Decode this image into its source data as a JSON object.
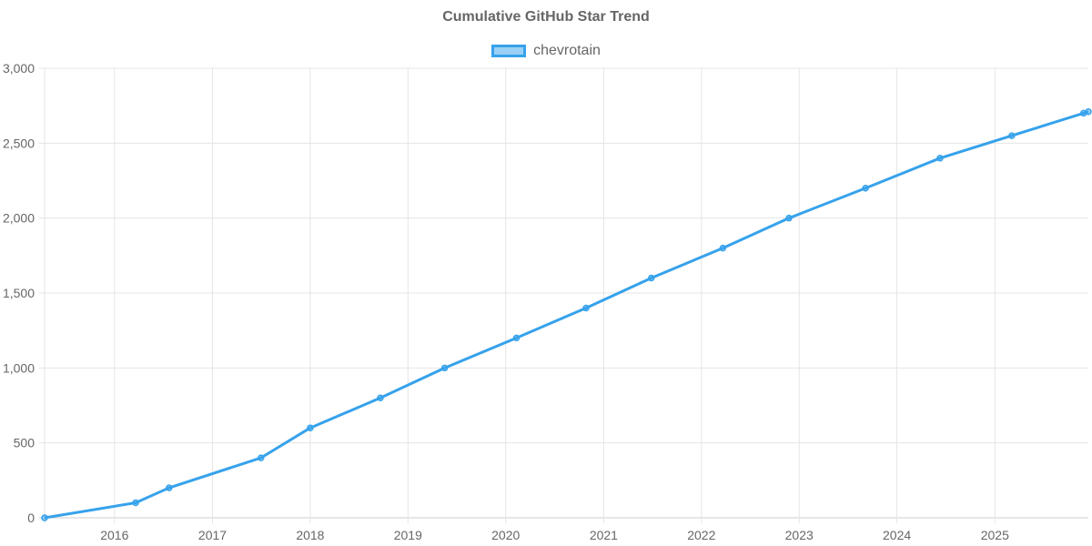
{
  "chart_data": {
    "type": "line",
    "title": "Cumulative GitHub Star Trend",
    "xlabel": "",
    "ylabel": "",
    "ylim": [
      0,
      3000
    ],
    "xlim": [
      "2015-04-15",
      "2025-12-16"
    ],
    "y_ticks": [
      "0",
      "500",
      "1,000",
      "1,500",
      "2,000",
      "2,500",
      "3,000"
    ],
    "x_ticks": [
      "2016",
      "2017",
      "2018",
      "2019",
      "2020",
      "2021",
      "2022",
      "2023",
      "2024",
      "2025"
    ],
    "grid": true,
    "legend": "top",
    "series": [
      {
        "name": "chevrotain",
        "color": "#36a2eb",
        "x": [
          "2015-04-15",
          "2016-03-20",
          "2016-07-23",
          "2017-07-01",
          "2018-01-01",
          "2018-09-20",
          "2019-05-18",
          "2020-02-10",
          "2020-10-27",
          "2021-06-28",
          "2022-03-22",
          "2022-11-24",
          "2023-09-06",
          "2024-06-10",
          "2025-03-05",
          "2025-11-28",
          "2025-12-16"
        ],
        "y": [
          0,
          100,
          200,
          400,
          600,
          800,
          1000,
          1200,
          1400,
          1600,
          1800,
          2000,
          2200,
          2400,
          2550,
          2700,
          2710
        ]
      }
    ]
  }
}
